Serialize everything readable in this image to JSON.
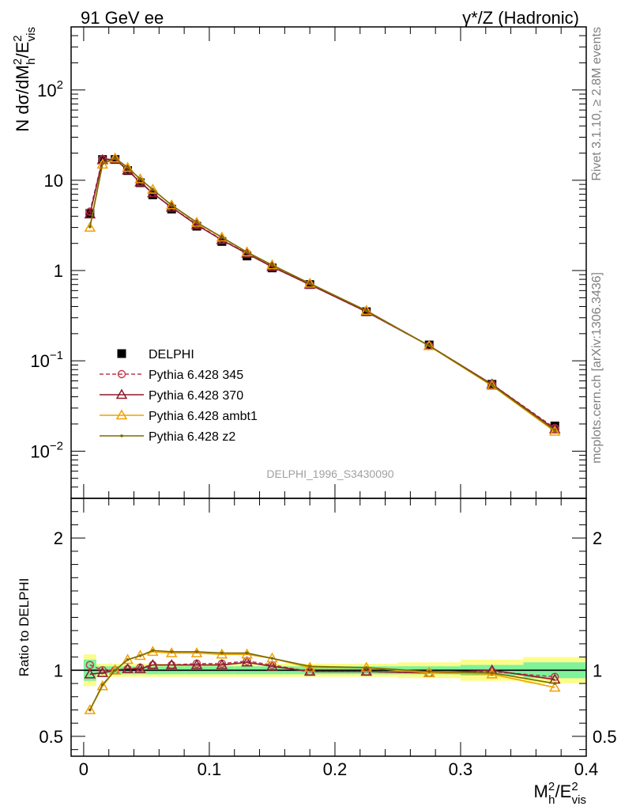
{
  "header": {
    "left_title": "91 GeV ee",
    "right_title": "γ*/Z (Hadronic)"
  },
  "side_labels": {
    "rivet": "Rivet 3.1.10, ≥ 2.8M events",
    "mcplots": "mcplots.cern.ch [arXiv:1306.3436]"
  },
  "analysis_id": "DELPHI_1996_S3430090",
  "colors": {
    "data": "#000000",
    "p345": "#c0394e",
    "p370": "#8b1a2e",
    "ambt1": "#f0a000",
    "z2": "#7a6a00",
    "band_inner": "#7ff29a",
    "band_outer": "#fbfc8c"
  },
  "chart_data": [
    {
      "type": "line",
      "panel": "main",
      "ylabel": "N dσ/dM_h²/E_vis²",
      "yscale": "log",
      "ylim": [
        0.003,
        500
      ],
      "xlim": [
        -0.01,
        0.4
      ],
      "yticks": [
        {
          "v": 0.01,
          "base": "10",
          "exp": "−2"
        },
        {
          "v": 0.1,
          "base": "10",
          "exp": "−1"
        },
        {
          "v": 1,
          "base": "1",
          "exp": ""
        },
        {
          "v": 10,
          "base": "10",
          "exp": ""
        },
        {
          "v": 100,
          "base": "10",
          "exp": "2"
        }
      ],
      "x": [
        0.005,
        0.015,
        0.025,
        0.035,
        0.045,
        0.055,
        0.07,
        0.09,
        0.11,
        0.13,
        0.15,
        0.18,
        0.225,
        0.275,
        0.325,
        0.375
      ],
      "series": [
        {
          "name": "DELPHI",
          "key": "data",
          "marker": "square",
          "line": "none",
          "values": [
            4.3,
            17.0,
            17.0,
            12.8,
            9.4,
            6.9,
            4.8,
            3.1,
            2.1,
            1.45,
            1.07,
            0.7,
            0.35,
            0.15,
            0.055,
            0.019
          ]
        },
        {
          "name": "Pythia 6.428 345",
          "key": "p345",
          "marker": "circle",
          "line": "dashed",
          "values": [
            4.5,
            17.2,
            17.1,
            13.0,
            9.6,
            7.2,
            5.0,
            3.25,
            2.2,
            1.55,
            1.1,
            0.7,
            0.35,
            0.147,
            0.055,
            0.018
          ]
        },
        {
          "name": "Pythia 6.428 370",
          "key": "p370",
          "marker": "triangle",
          "line": "solid",
          "values": [
            4.2,
            16.8,
            17.1,
            12.9,
            9.5,
            7.2,
            5.0,
            3.2,
            2.18,
            1.54,
            1.1,
            0.7,
            0.35,
            0.147,
            0.055,
            0.0175
          ]
        },
        {
          "name": "Pythia 6.428 ambt1",
          "key": "ambt1",
          "marker": "triangle",
          "line": "solid",
          "values": [
            3.0,
            15.0,
            17.5,
            13.8,
            10.3,
            7.9,
            5.3,
            3.4,
            2.33,
            1.6,
            1.15,
            0.72,
            0.36,
            0.146,
            0.053,
            0.0165
          ]
        },
        {
          "name": "Pythia 6.428 z2",
          "key": "z2",
          "marker": "dot",
          "line": "solid",
          "values": [
            3.05,
            15.2,
            17.6,
            13.9,
            10.3,
            7.9,
            5.3,
            3.42,
            2.34,
            1.6,
            1.15,
            0.72,
            0.36,
            0.147,
            0.054,
            0.017
          ]
        }
      ],
      "legend_position": "lower-left"
    },
    {
      "type": "line",
      "panel": "ratio",
      "ylabel": "Ratio to DELPHI",
      "xlabel": "M_h²/E_vis²",
      "ylim": [
        0.35,
        2.3
      ],
      "xlim": [
        -0.01,
        0.4
      ],
      "yticks": [
        0.5,
        1,
        2
      ],
      "xticks": [
        {
          "v": 0,
          "label": "0"
        },
        {
          "v": 0.1,
          "label": "0.1"
        },
        {
          "v": 0.2,
          "label": "0.2"
        },
        {
          "v": 0.3,
          "label": "0.3"
        },
        {
          "v": 0.4,
          "label": "0.4"
        }
      ],
      "x": [
        0.005,
        0.015,
        0.025,
        0.035,
        0.045,
        0.055,
        0.07,
        0.09,
        0.11,
        0.13,
        0.15,
        0.18,
        0.225,
        0.275,
        0.325,
        0.375
      ],
      "uncertainty_band": {
        "bin_edges": [
          0.0,
          0.01,
          0.02,
          0.03,
          0.04,
          0.05,
          0.06,
          0.08,
          0.1,
          0.12,
          0.14,
          0.16,
          0.2,
          0.25,
          0.3,
          0.35,
          0.4
        ],
        "inner": [
          0.08,
          0.03,
          0.03,
          0.03,
          0.03,
          0.03,
          0.03,
          0.03,
          0.03,
          0.03,
          0.03,
          0.03,
          0.03,
          0.03,
          0.04,
          0.06
        ],
        "outer": [
          0.12,
          0.05,
          0.05,
          0.05,
          0.05,
          0.05,
          0.05,
          0.05,
          0.05,
          0.05,
          0.05,
          0.05,
          0.05,
          0.06,
          0.08,
          0.1
        ]
      },
      "series": [
        {
          "name": "Pythia 6.428 345",
          "key": "p345",
          "marker": "circle",
          "line": "dashed",
          "values": [
            1.04,
            1.0,
            1.0,
            1.01,
            1.02,
            1.04,
            1.04,
            1.05,
            1.05,
            1.07,
            1.04,
            0.99,
            0.99,
            0.98,
            0.99,
            0.95
          ]
        },
        {
          "name": "Pythia 6.428 370",
          "key": "p370",
          "marker": "triangle",
          "line": "solid",
          "values": [
            0.97,
            0.98,
            1.0,
            1.01,
            1.01,
            1.04,
            1.04,
            1.04,
            1.04,
            1.06,
            1.03,
            0.99,
            0.99,
            0.98,
            1.0,
            0.93
          ]
        },
        {
          "name": "Pythia 6.428 ambt1",
          "key": "ambt1",
          "marker": "triangle",
          "line": "solid",
          "values": [
            0.7,
            0.88,
            1.0,
            1.08,
            1.11,
            1.14,
            1.13,
            1.13,
            1.12,
            1.12,
            1.09,
            1.02,
            1.02,
            0.98,
            0.97,
            0.87
          ]
        },
        {
          "name": "Pythia 6.428 z2",
          "key": "z2",
          "marker": "dot",
          "line": "solid",
          "values": [
            0.7,
            0.89,
            1.0,
            1.08,
            1.11,
            1.15,
            1.14,
            1.14,
            1.13,
            1.13,
            1.09,
            1.03,
            1.02,
            0.99,
            0.98,
            0.9
          ]
        }
      ]
    }
  ]
}
